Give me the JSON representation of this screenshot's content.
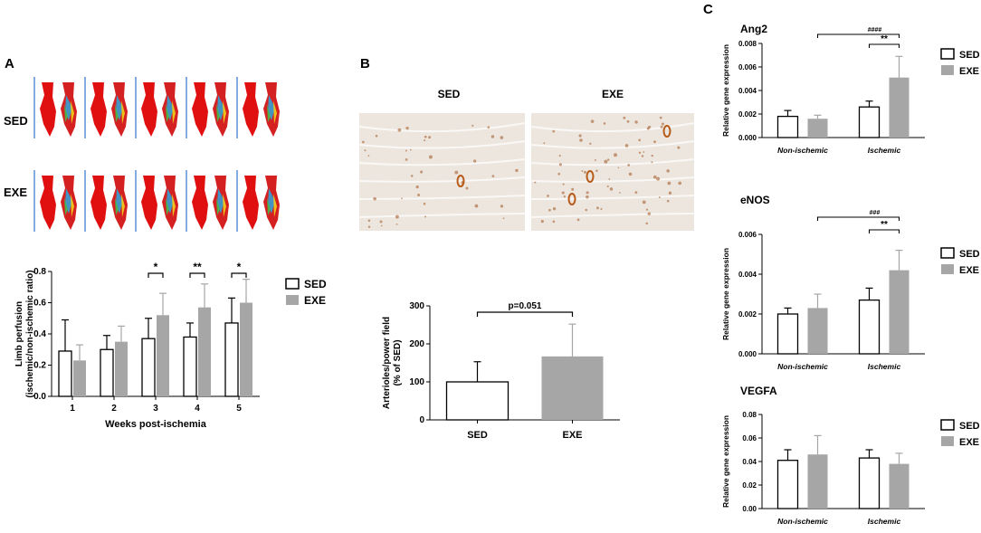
{
  "panels": {
    "a": "A",
    "b": "B",
    "c": "C"
  },
  "colors": {
    "sed_fill": "#ffffff",
    "exe_fill": "#a6a6a6",
    "exe_error": "#a6a6a6",
    "stroke": "#000000",
    "image_line": "#5b8fd6",
    "tissue_bg": "#ece6df",
    "stain": "#a0521e"
  },
  "images": {
    "a_rows": [
      "SED",
      "EXE"
    ],
    "a_columns": 5,
    "b_labels": [
      "SED",
      "EXE"
    ]
  },
  "chart_data": [
    {
      "id": "A",
      "type": "bar",
      "categories": [
        "1",
        "2",
        "3",
        "4",
        "5"
      ],
      "series": [
        {
          "name": "SED",
          "values": [
            0.29,
            0.3,
            0.37,
            0.38,
            0.47
          ],
          "errors": [
            0.2,
            0.09,
            0.13,
            0.09,
            0.16
          ]
        },
        {
          "name": "EXE",
          "values": [
            0.23,
            0.35,
            0.52,
            0.57,
            0.6
          ],
          "errors": [
            0.1,
            0.1,
            0.14,
            0.15,
            0.15
          ]
        }
      ],
      "xlabel": "Weeks post-ischemia",
      "ylabel": "Limb perfusion\n(ischemic/non-ischemic ratio)",
      "ylim": [
        0,
        0.8
      ],
      "yticks": [
        "0.0",
        "0.2",
        "0.4",
        "0.6",
        "0.8"
      ],
      "significance": [
        {
          "category": "3",
          "label": "*"
        },
        {
          "category": "4",
          "label": "**"
        },
        {
          "category": "5",
          "label": "*"
        }
      ],
      "legend": "right"
    },
    {
      "id": "B",
      "type": "bar",
      "categories": [
        "SED",
        "EXE"
      ],
      "values": [
        100,
        167
      ],
      "errors": [
        53,
        85
      ],
      "xlabel": "",
      "ylabel": "Arterioles/power field\n(% of SED)",
      "ylim": [
        0,
        300
      ],
      "yticks": [
        "0",
        "100",
        "200",
        "300"
      ],
      "annotation": "p=0.051"
    },
    {
      "id": "C-Ang2",
      "type": "bar",
      "title": "Ang2",
      "categories": [
        "Non-ischemic",
        "Ischemic"
      ],
      "series": [
        {
          "name": "SED",
          "values": [
            0.0018,
            0.0026
          ],
          "errors": [
            0.0005,
            0.0005
          ]
        },
        {
          "name": "EXE",
          "values": [
            0.0016,
            0.0051
          ],
          "errors": [
            0.0003,
            0.0018
          ]
        }
      ],
      "xlabel": "",
      "ylabel": "Relative gene expression",
      "ylim": [
        0,
        0.008
      ],
      "yticks": [
        "0.000",
        "0.002",
        "0.004",
        "0.006",
        "0.008"
      ],
      "significance": [
        {
          "label": "####",
          "span": "Non-ischemic EXE to Ischemic EXE"
        },
        {
          "label": "**",
          "span": "Ischemic SED to Ischemic EXE"
        }
      ],
      "legend": "right"
    },
    {
      "id": "C-eNOS",
      "type": "bar",
      "title": "eNOS",
      "categories": [
        "Non-ischemic",
        "Ischemic"
      ],
      "series": [
        {
          "name": "SED",
          "values": [
            0.002,
            0.0027
          ],
          "errors": [
            0.0003,
            0.0006
          ]
        },
        {
          "name": "EXE",
          "values": [
            0.0023,
            0.0042
          ],
          "errors": [
            0.0007,
            0.001
          ]
        }
      ],
      "xlabel": "",
      "ylabel": "Relative gene expression",
      "ylim": [
        0,
        0.006
      ],
      "yticks": [
        "0.000",
        "0.002",
        "0.004",
        "0.006"
      ],
      "significance": [
        {
          "label": "###",
          "span": "Non-ischemic EXE to Ischemic EXE"
        },
        {
          "label": "**",
          "span": "Ischemic SED to Ischemic EXE"
        }
      ],
      "legend": "right"
    },
    {
      "id": "C-VEGFA",
      "type": "bar",
      "title": "VEGFA",
      "categories": [
        "Non-ischemic",
        "Ischemic"
      ],
      "series": [
        {
          "name": "SED",
          "values": [
            0.041,
            0.043
          ],
          "errors": [
            0.009,
            0.007
          ]
        },
        {
          "name": "EXE",
          "values": [
            0.046,
            0.038
          ],
          "errors": [
            0.016,
            0.009
          ]
        }
      ],
      "xlabel": "",
      "ylabel": "Relative gene expression",
      "ylim": [
        0,
        0.08
      ],
      "yticks": [
        "0.00",
        "0.02",
        "0.04",
        "0.06",
        "0.08"
      ],
      "significance": [],
      "legend": "right"
    }
  ]
}
